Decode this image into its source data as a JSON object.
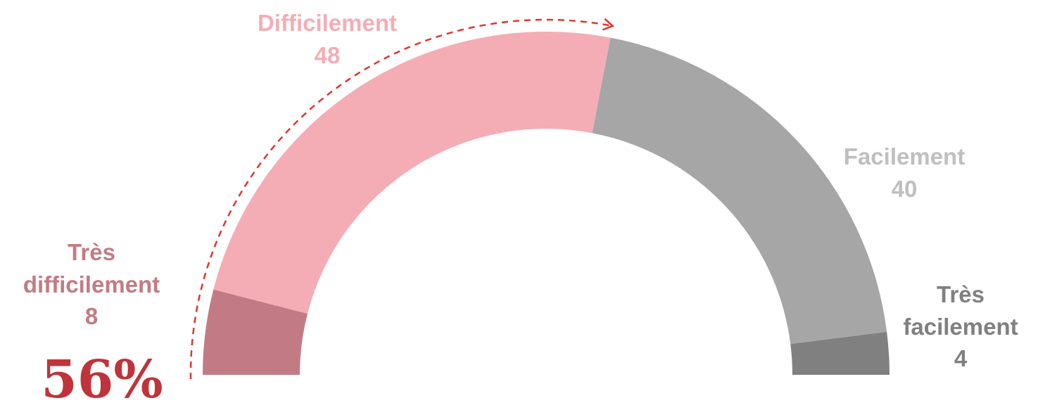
{
  "chart_data": {
    "type": "pie",
    "variant": "semi-donut gauge",
    "slices": [
      {
        "label_lines": [
          "Très",
          "difficilement"
        ],
        "value": 8,
        "value_label": "8",
        "color": "#c27b84",
        "label_color": "#c27b84"
      },
      {
        "label_lines": [
          "Difficilement"
        ],
        "value": 48,
        "value_label": "48",
        "color": "#f4adb5",
        "label_color": "#f4adb5"
      },
      {
        "label_lines": [
          "Facilement"
        ],
        "value": 40,
        "value_label": "40",
        "color": "#a6a6a6",
        "label_color": "#bfbfbf"
      },
      {
        "label_lines": [
          "Très",
          "facilement"
        ],
        "value": 4,
        "value_label": "4",
        "color": "#808080",
        "label_color": "#808080"
      }
    ],
    "highlight": {
      "text": "56%",
      "color": "#c0333a",
      "arrow_color": "#e0352b"
    }
  }
}
